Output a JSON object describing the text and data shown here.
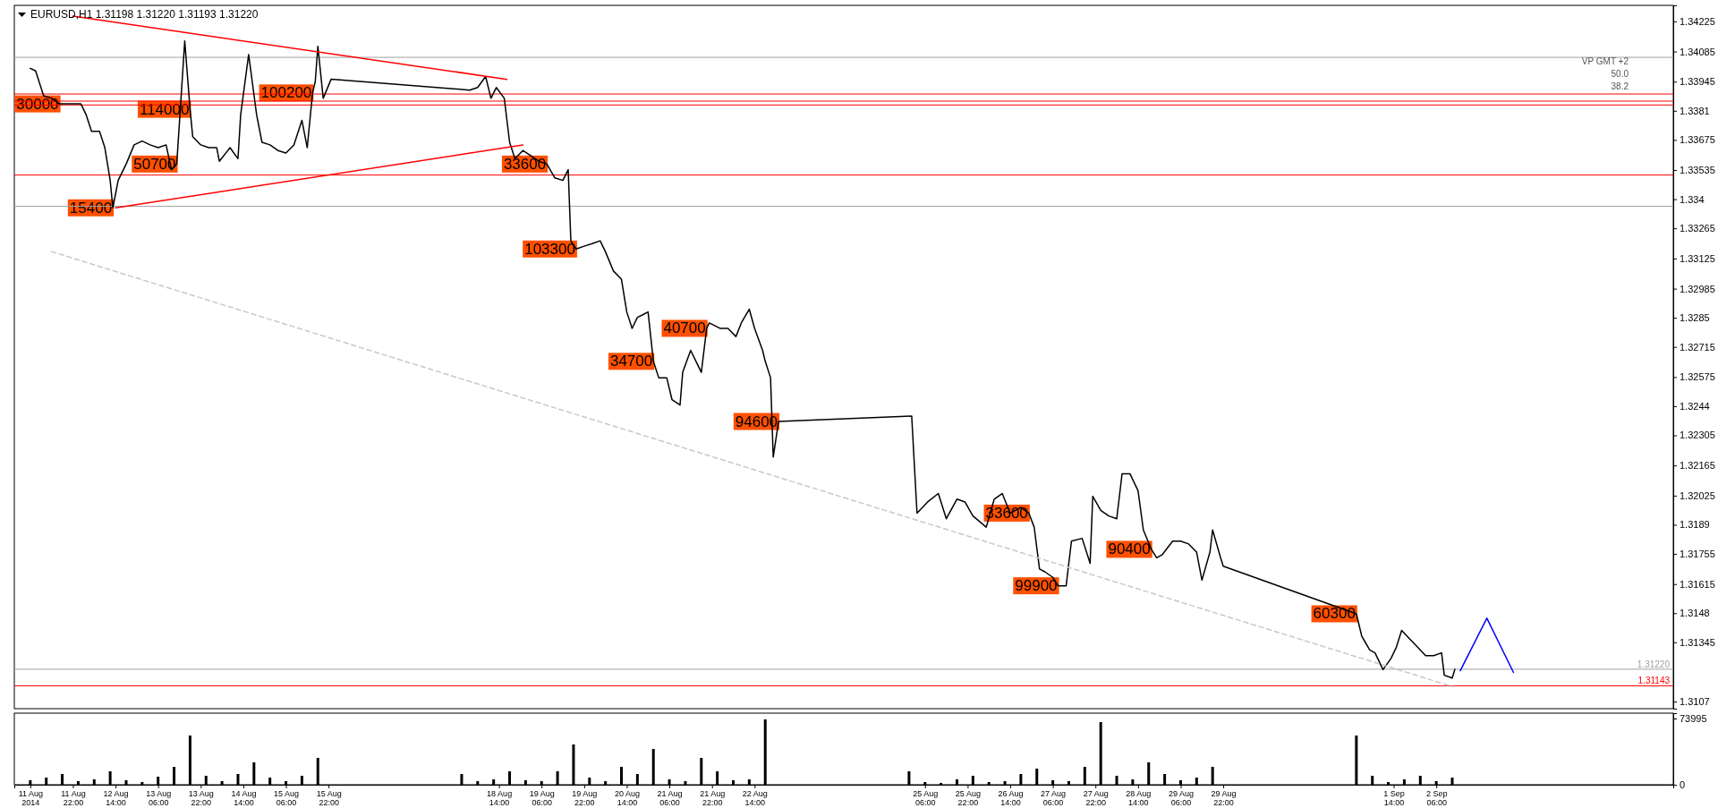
{
  "chart_data": [
    {
      "type": "line",
      "title": "EURUSD,H1  1.31198 1.31220 1.31193 1.31220",
      "xlim": [
        "2014-08-11T00:00",
        "2014-09-05T23:00"
      ],
      "ylim": [
        1.31037,
        1.34299
      ],
      "tick_labels": "y",
      "yticks": [
        1.34225,
        1.34085,
        1.33945,
        1.3381,
        1.33675,
        1.33535,
        1.334,
        1.33265,
        1.33125,
        1.32985,
        1.3285,
        1.32715,
        1.32575,
        1.3244,
        1.32305,
        1.32165,
        1.32025,
        1.3189,
        1.31755,
        1.31615,
        1.3148,
        1.31345,
        1.3107
      ],
      "series": [
        {
          "color": "#000000",
          "x": [
            "2014-08-11T06:00",
            "2014-08-11T08:00",
            "2014-08-11T11:00",
            "2014-08-11T14:00",
            "2014-08-11T17:00",
            "2014-08-11T20:00",
            "2014-08-12T01:00",
            "2014-08-12T03:00",
            "2014-08-12T05:00",
            "2014-08-12T08:00",
            "2014-08-12T10:00",
            "2014-08-12T12:00",
            "2014-08-12T13:00",
            "2014-08-12T15:00",
            "2014-08-12T18:00",
            "2014-08-12T21:00",
            "2014-08-13T00:00",
            "2014-08-13T03:00",
            "2014-08-13T06:00",
            "2014-08-13T09:00",
            "2014-08-13T11:00",
            "2014-08-13T13:00",
            "2014-08-13T16:00",
            "2014-08-13T18:00",
            "2014-08-13T19:00",
            "2014-08-13T22:00",
            "2014-08-14T01:00",
            "2014-08-14T04:00",
            "2014-08-14T05:00",
            "2014-08-14T09:00",
            "2014-08-14T12:00",
            "2014-08-14T13:00",
            "2014-08-14T16:00",
            "2014-08-14T19:00",
            "2014-08-14T21:00",
            "2014-08-15T00:00",
            "2014-08-15T03:00",
            "2014-08-15T06:00",
            "2014-08-15T09:00",
            "2014-08-15T12:00",
            "2014-08-15T14:00",
            "2014-08-15T16:00",
            "2014-08-15T17:00",
            "2014-08-15T18:00",
            "2014-08-15T20:00",
            "2014-08-15T23:00",
            "2014-08-18T03:00",
            "2014-08-18T06:00",
            "2014-08-18T09:00",
            "2014-08-18T11:00",
            "2014-08-18T13:00",
            "2014-08-18T16:00",
            "2014-08-18T18:00",
            "2014-08-18T20:00",
            "2014-08-18T23:00",
            "2014-08-19T02:00",
            "2014-08-19T05:00",
            "2014-08-19T08:00",
            "2014-08-19T11:00",
            "2014-08-19T14:00",
            "2014-08-19T16:00",
            "2014-08-19T17:00",
            "2014-08-19T19:00",
            "2014-08-19T22:00",
            "2014-08-20T01:00",
            "2014-08-20T04:00",
            "2014-08-20T06:00",
            "2014-08-20T09:00",
            "2014-08-20T12:00",
            "2014-08-20T14:00",
            "2014-08-20T16:00",
            "2014-08-20T18:00",
            "2014-08-20T20:00",
            "2014-08-20T22:00",
            "2014-08-21T00:00",
            "2014-08-21T02:00",
            "2014-08-21T05:00",
            "2014-08-21T07:00",
            "2014-08-21T10:00",
            "2014-08-21T11:00",
            "2014-08-21T14:00",
            "2014-08-21T16:00",
            "2014-08-21T18:00",
            "2014-08-21T20:00",
            "2014-08-21T21:00",
            "2014-08-22T01:00",
            "2014-08-22T04:00",
            "2014-08-22T07:00",
            "2014-08-22T09:00",
            "2014-08-22T12:00",
            "2014-08-22T14:00",
            "2014-08-22T17:00",
            "2014-08-22T18:00",
            "2014-08-22T20:00",
            "2014-08-22T21:00",
            "2014-08-22T23:00",
            "2014-08-25T01:00",
            "2014-08-25T03:00",
            "2014-08-25T07:00",
            "2014-08-25T11:00",
            "2014-08-25T14:00",
            "2014-08-25T18:00",
            "2014-08-25T21:00",
            "2014-08-26T00:00",
            "2014-08-26T05:00",
            "2014-08-26T08:00",
            "2014-08-26T11:00",
            "2014-08-26T14:00",
            "2014-08-26T18:00",
            "2014-08-26T21:00",
            "2014-08-26T23:00",
            "2014-08-27T01:00",
            "2014-08-27T03:00",
            "2014-08-27T06:00",
            "2014-08-27T08:00",
            "2014-08-27T11:00",
            "2014-08-27T13:00",
            "2014-08-27T17:00",
            "2014-08-27T20:00",
            "2014-08-27T21:00",
            "2014-08-28T00:00",
            "2014-08-28T03:00",
            "2014-08-28T06:00",
            "2014-08-28T08:00",
            "2014-08-28T11:00",
            "2014-08-28T14:00",
            "2014-08-28T16:00",
            "2014-08-28T19:00",
            "2014-08-28T21:00",
            "2014-08-28T23:00",
            "2014-08-29T03:00",
            "2014-08-29T06:00",
            "2014-08-29T09:00",
            "2014-08-29T12:00",
            "2014-08-29T14:00",
            "2014-08-29T17:00",
            "2014-08-29T18:00",
            "2014-08-29T21:00",
            "2014-08-29T22:00",
            "2014-09-01T00:00",
            "2014-09-01T02:00",
            "2014-09-01T05:00",
            "2014-09-01T07:00",
            "2014-09-01T10:00",
            "2014-09-01T13:00",
            "2014-09-01T15:00",
            "2014-09-01T17:00",
            "2014-09-01T20:00",
            "2014-09-01T23:00",
            "2014-09-02T02:00",
            "2014-09-02T05:00",
            "2014-09-02T08:00",
            "2014-09-02T09:00",
            "2014-09-02T12:00",
            "2014-09-02T13:00"
          ],
          "values": [
            1.34007,
            1.33995,
            1.3388,
            1.33868,
            1.33842,
            1.33842,
            1.33842,
            1.33791,
            1.33715,
            1.33715,
            1.33639,
            1.33487,
            1.3336,
            1.33487,
            1.33563,
            1.33652,
            1.3367,
            1.33652,
            1.33639,
            1.33652,
            1.33537,
            1.33563,
            1.34134,
            1.33817,
            1.3369,
            1.33652,
            1.33639,
            1.33639,
            1.33576,
            1.33639,
            1.33588,
            1.33791,
            1.34071,
            1.33791,
            1.33664,
            1.33652,
            1.33626,
            1.33614,
            1.33652,
            1.33766,
            1.33639,
            1.33893,
            1.33944,
            1.34109,
            1.33868,
            1.33957,
            1.33906,
            1.33918,
            1.33969,
            1.33868,
            1.33918,
            1.33868,
            1.33664,
            1.33588,
            1.33626,
            1.33601,
            1.33576,
            1.33563,
            1.33499,
            1.33487,
            1.33537,
            1.33207,
            1.33169,
            1.33182,
            1.33194,
            1.33207,
            1.33156,
            1.33067,
            1.33029,
            1.32877,
            1.32801,
            1.32852,
            1.32864,
            1.32877,
            1.32648,
            1.32572,
            1.32572,
            1.3247,
            1.32445,
            1.32597,
            1.32699,
            1.32648,
            1.32597,
            1.32801,
            1.32826,
            1.32801,
            1.32801,
            1.32763,
            1.32826,
            1.3289,
            1.32801,
            1.32699,
            1.32648,
            1.32572,
            1.32204,
            1.32369,
            1.32394,
            1.31944,
            1.31996,
            1.32035,
            1.31918,
            1.32009,
            1.31996,
            1.31931,
            1.31879,
            1.32009,
            1.32035,
            1.31944,
            1.3197,
            1.31944,
            1.31879,
            1.31685,
            1.31672,
            1.31646,
            1.31607,
            1.31607,
            1.31814,
            1.31827,
            1.31711,
            1.32022,
            1.31957,
            1.31931,
            1.31918,
            1.32126,
            1.32126,
            1.32048,
            1.31866,
            1.31776,
            1.31737,
            1.3175,
            1.31814,
            1.31814,
            1.31801,
            1.31763,
            1.31633,
            1.31763,
            1.31866,
            1.31737,
            1.31698,
            1.31477,
            1.31374,
            1.31309,
            1.31296,
            1.31218,
            1.3127,
            1.31322,
            1.314,
            1.31361,
            1.31322,
            1.31283,
            1.31283,
            1.31296,
            1.31192,
            1.31179,
            1.3122
          ]
        },
        {
          "color": "#ff0000",
          "x": [
            "2014-08-11T22:00",
            "2014-08-18T17:00"
          ],
          "values": [
            1.34249,
            1.33956
          ]
        },
        {
          "color": "#ff0000",
          "x": [
            "2014-08-12T14:00",
            "2014-08-18T23:00"
          ],
          "values": [
            1.3336,
            1.33652
          ]
        },
        {
          "color": "#c8c8c8",
          "line_style": "dashed",
          "x": [
            "2014-08-11T14:00",
            "2014-09-02T12:00"
          ],
          "values": [
            1.33157,
            1.3114
          ]
        },
        {
          "color": "#0000ff",
          "x": [
            "2014-09-02T15:00",
            "2014-09-03T01:00",
            "2014-09-03T11:00"
          ],
          "values": [
            1.31213,
            1.31457,
            1.31205
          ]
        }
      ],
      "ref_lines": [
        {
          "axis": "y",
          "value": 1.3122,
          "label": "1.31220",
          "color": "#a0a0a0"
        },
        {
          "axis": "y",
          "value": 1.31143,
          "label": "1.31143",
          "color": "#ff0000"
        },
        {
          "axis": "y",
          "value": 1.34058,
          "color": "#a0a0a0"
        },
        {
          "axis": "y",
          "value": 1.33367,
          "color": "#a0a0a0"
        },
        {
          "axis": "y",
          "value": 1.33888,
          "color": "#ff0000"
        },
        {
          "axis": "y",
          "value": 1.33855,
          "color": "#ff0000"
        },
        {
          "axis": "y",
          "value": 1.33837,
          "color": "#ff0000"
        },
        {
          "axis": "y",
          "value": 1.33512,
          "color": "#ff0000"
        }
      ],
      "annotations": [
        "VP GMT +2",
        "50.0",
        "38.2",
        {
          "text": "30000",
          "x": "2014-08-11T17:00",
          "y": 1.33842
        },
        {
          "text": "114000",
          "x": "2014-08-13T18:00",
          "y": 1.33817
        },
        {
          "text": "15400",
          "x": "2014-08-12T13:00",
          "y": 1.3336
        },
        {
          "text": "50700",
          "x": "2014-08-13T13:00",
          "y": 1.33563
        },
        {
          "text": "100200",
          "x": "2014-08-15T16:00",
          "y": 1.33893
        },
        {
          "text": "33600",
          "x": "2014-08-19T08:00",
          "y": 1.33563
        },
        {
          "text": "103300",
          "x": "2014-08-19T19:00",
          "y": 1.33169
        },
        {
          "text": "40700",
          "x": "2014-08-21T20:00",
          "y": 1.32801
        },
        {
          "text": "34700",
          "x": "2014-08-21T00:00",
          "y": 1.32648
        },
        {
          "text": "94600",
          "x": "2014-08-22T23:00",
          "y": 1.32369
        },
        {
          "text": "33600",
          "x": "2014-08-26T21:00",
          "y": 1.31944
        },
        {
          "text": "90400",
          "x": "2014-08-28T19:00",
          "y": 1.31776
        },
        {
          "text": "99900",
          "x": "2014-08-27T08:00",
          "y": 1.31607
        },
        {
          "text": "60300",
          "x": "2014-09-01T00:00",
          "y": 1.31477
        }
      ]
    },
    {
      "type": "bar",
      "xlim": [
        "2014-08-11T00:00",
        "2014-09-05T23:00"
      ],
      "ylim": [
        0,
        80000
      ],
      "yticks": [
        0,
        73995
      ],
      "color": "#000000",
      "xticks": [
        {
          "value": "2014-08-11T06:00",
          "label": "11 Aug 2014"
        },
        {
          "value": "2014-08-11T22:00",
          "label": "11 Aug 22:00"
        },
        {
          "value": "2014-08-12T14:00",
          "label": "12 Aug 14:00"
        },
        {
          "value": "2014-08-13T06:00",
          "label": "13 Aug 06:00"
        },
        {
          "value": "2014-08-13T22:00",
          "label": "13 Aug 22:00"
        },
        {
          "value": "2014-08-14T14:00",
          "label": "14 Aug 14:00"
        },
        {
          "value": "2014-08-15T06:00",
          "label": "15 Aug 06:00"
        },
        {
          "value": "2014-08-15T22:00",
          "label": "15 Aug 22:00"
        },
        {
          "value": "2014-08-18T14:00",
          "label": "18 Aug 14:00"
        },
        {
          "value": "2014-08-19T06:00",
          "label": "19 Aug 06:00"
        },
        {
          "value": "2014-08-19T22:00",
          "label": "19 Aug 22:00"
        },
        {
          "value": "2014-08-20T14:00",
          "label": "20 Aug 14:00"
        },
        {
          "value": "2014-08-21T06:00",
          "label": "21 Aug 06:00"
        },
        {
          "value": "2014-08-21T22:00",
          "label": "21 Aug 22:00"
        },
        {
          "value": "2014-08-22T14:00",
          "label": "22 Aug 14:00"
        },
        {
          "value": "2014-08-25T06:00",
          "label": "25 Aug 06:00"
        },
        {
          "value": "2014-08-25T22:00",
          "label": "25 Aug 22:00"
        },
        {
          "value": "2014-08-26T14:00",
          "label": "26 Aug 14:00"
        },
        {
          "value": "2014-08-27T06:00",
          "label": "27 Aug 06:00"
        },
        {
          "value": "2014-08-27T22:00",
          "label": "27 Aug 22:00"
        },
        {
          "value": "2014-08-28T14:00",
          "label": "28 Aug 14:00"
        },
        {
          "value": "2014-08-29T06:00",
          "label": "29 Aug 06:00"
        },
        {
          "value": "2014-08-29T22:00",
          "label": "29 Aug 22:00"
        },
        {
          "value": "2014-09-01T14:00",
          "label": "1 Sep 14:00"
        },
        {
          "value": "2014-09-02T06:00",
          "label": "2 Sep 06:00"
        }
      ],
      "x": [
        "2014-08-11T06:00",
        "2014-08-11T12:00",
        "2014-08-11T18:00",
        "2014-08-12T00:00",
        "2014-08-12T06:00",
        "2014-08-12T12:00",
        "2014-08-12T18:00",
        "2014-08-13T00:00",
        "2014-08-13T06:00",
        "2014-08-13T12:00",
        "2014-08-13T18:00",
        "2014-08-14T00:00",
        "2014-08-14T06:00",
        "2014-08-14T12:00",
        "2014-08-14T18:00",
        "2014-08-15T00:00",
        "2014-08-15T06:00",
        "2014-08-15T12:00",
        "2014-08-15T18:00",
        "2014-08-18T00:00",
        "2014-08-18T06:00",
        "2014-08-18T12:00",
        "2014-08-18T18:00",
        "2014-08-19T00:00",
        "2014-08-19T06:00",
        "2014-08-19T12:00",
        "2014-08-19T18:00",
        "2014-08-20T00:00",
        "2014-08-20T06:00",
        "2014-08-20T12:00",
        "2014-08-20T18:00",
        "2014-08-21T00:00",
        "2014-08-21T06:00",
        "2014-08-21T12:00",
        "2014-08-21T18:00",
        "2014-08-22T00:00",
        "2014-08-22T06:00",
        "2014-08-22T12:00",
        "2014-08-22T18:00",
        "2014-08-25T00:00",
        "2014-08-25T06:00",
        "2014-08-25T12:00",
        "2014-08-25T18:00",
        "2014-08-26T00:00",
        "2014-08-26T06:00",
        "2014-08-26T12:00",
        "2014-08-26T18:00",
        "2014-08-27T00:00",
        "2014-08-27T06:00",
        "2014-08-27T12:00",
        "2014-08-27T18:00",
        "2014-08-28T00:00",
        "2014-08-28T06:00",
        "2014-08-28T12:00",
        "2014-08-28T18:00",
        "2014-08-29T00:00",
        "2014-08-29T06:00",
        "2014-08-29T12:00",
        "2014-08-29T18:00",
        "2014-09-01T00:00",
        "2014-09-01T06:00",
        "2014-09-01T12:00",
        "2014-09-01T18:00",
        "2014-09-02T00:00",
        "2014-09-02T06:00",
        "2014-09-02T12:00"
      ],
      "values": [
        5000,
        8000,
        12000,
        4000,
        6000,
        15000,
        5000,
        3000,
        9000,
        20000,
        55000,
        10000,
        4000,
        12000,
        25000,
        8000,
        4000,
        10000,
        30000,
        12000,
        4000,
        6000,
        15000,
        5000,
        4000,
        15000,
        45000,
        8000,
        4000,
        20000,
        12000,
        40000,
        6000,
        4000,
        30000,
        15000,
        5000,
        6000,
        73000,
        15000,
        3000,
        2000,
        6000,
        10000,
        3000,
        4000,
        12000,
        18000,
        5000,
        4000,
        20000,
        70000,
        10000,
        6000,
        25000,
        12000,
        5000,
        8000,
        20000,
        55000,
        10000,
        3000,
        6000,
        10000,
        4000,
        8000
      ]
    }
  ]
}
